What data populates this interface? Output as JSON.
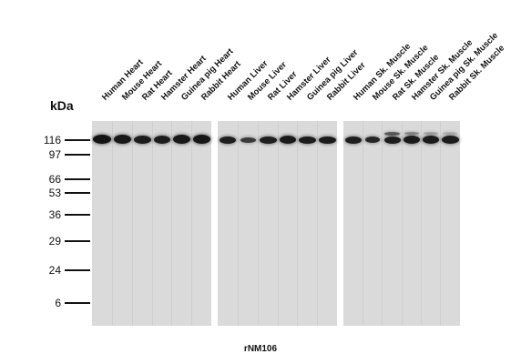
{
  "y_axis": {
    "unit": "kDa",
    "markers": [
      "116",
      "97",
      "66",
      "53",
      "36",
      "29",
      "24",
      "6"
    ]
  },
  "panels": [
    {
      "lanes": [
        "Human Heart",
        "Mouse Heart",
        "Rat Heart",
        "Hamster Heart",
        "Guinea pig Heart",
        "Rabbit Heart"
      ]
    },
    {
      "lanes": [
        "Human Liver",
        "Mouse Liver",
        "Rat Liver",
        "Hamster Liver",
        "Guinea pig Liver",
        "Rabbit Liver"
      ]
    },
    {
      "lanes": [
        "Human Sk. Muscle",
        "Mouse Sk. Muscle",
        "Rat Sk. Muscle",
        "Hamster Sk. Muscle",
        "Guinea pig Sk. Muscle",
        "Rabbit Sk. Muscle"
      ]
    }
  ],
  "caption": "rNM106"
}
